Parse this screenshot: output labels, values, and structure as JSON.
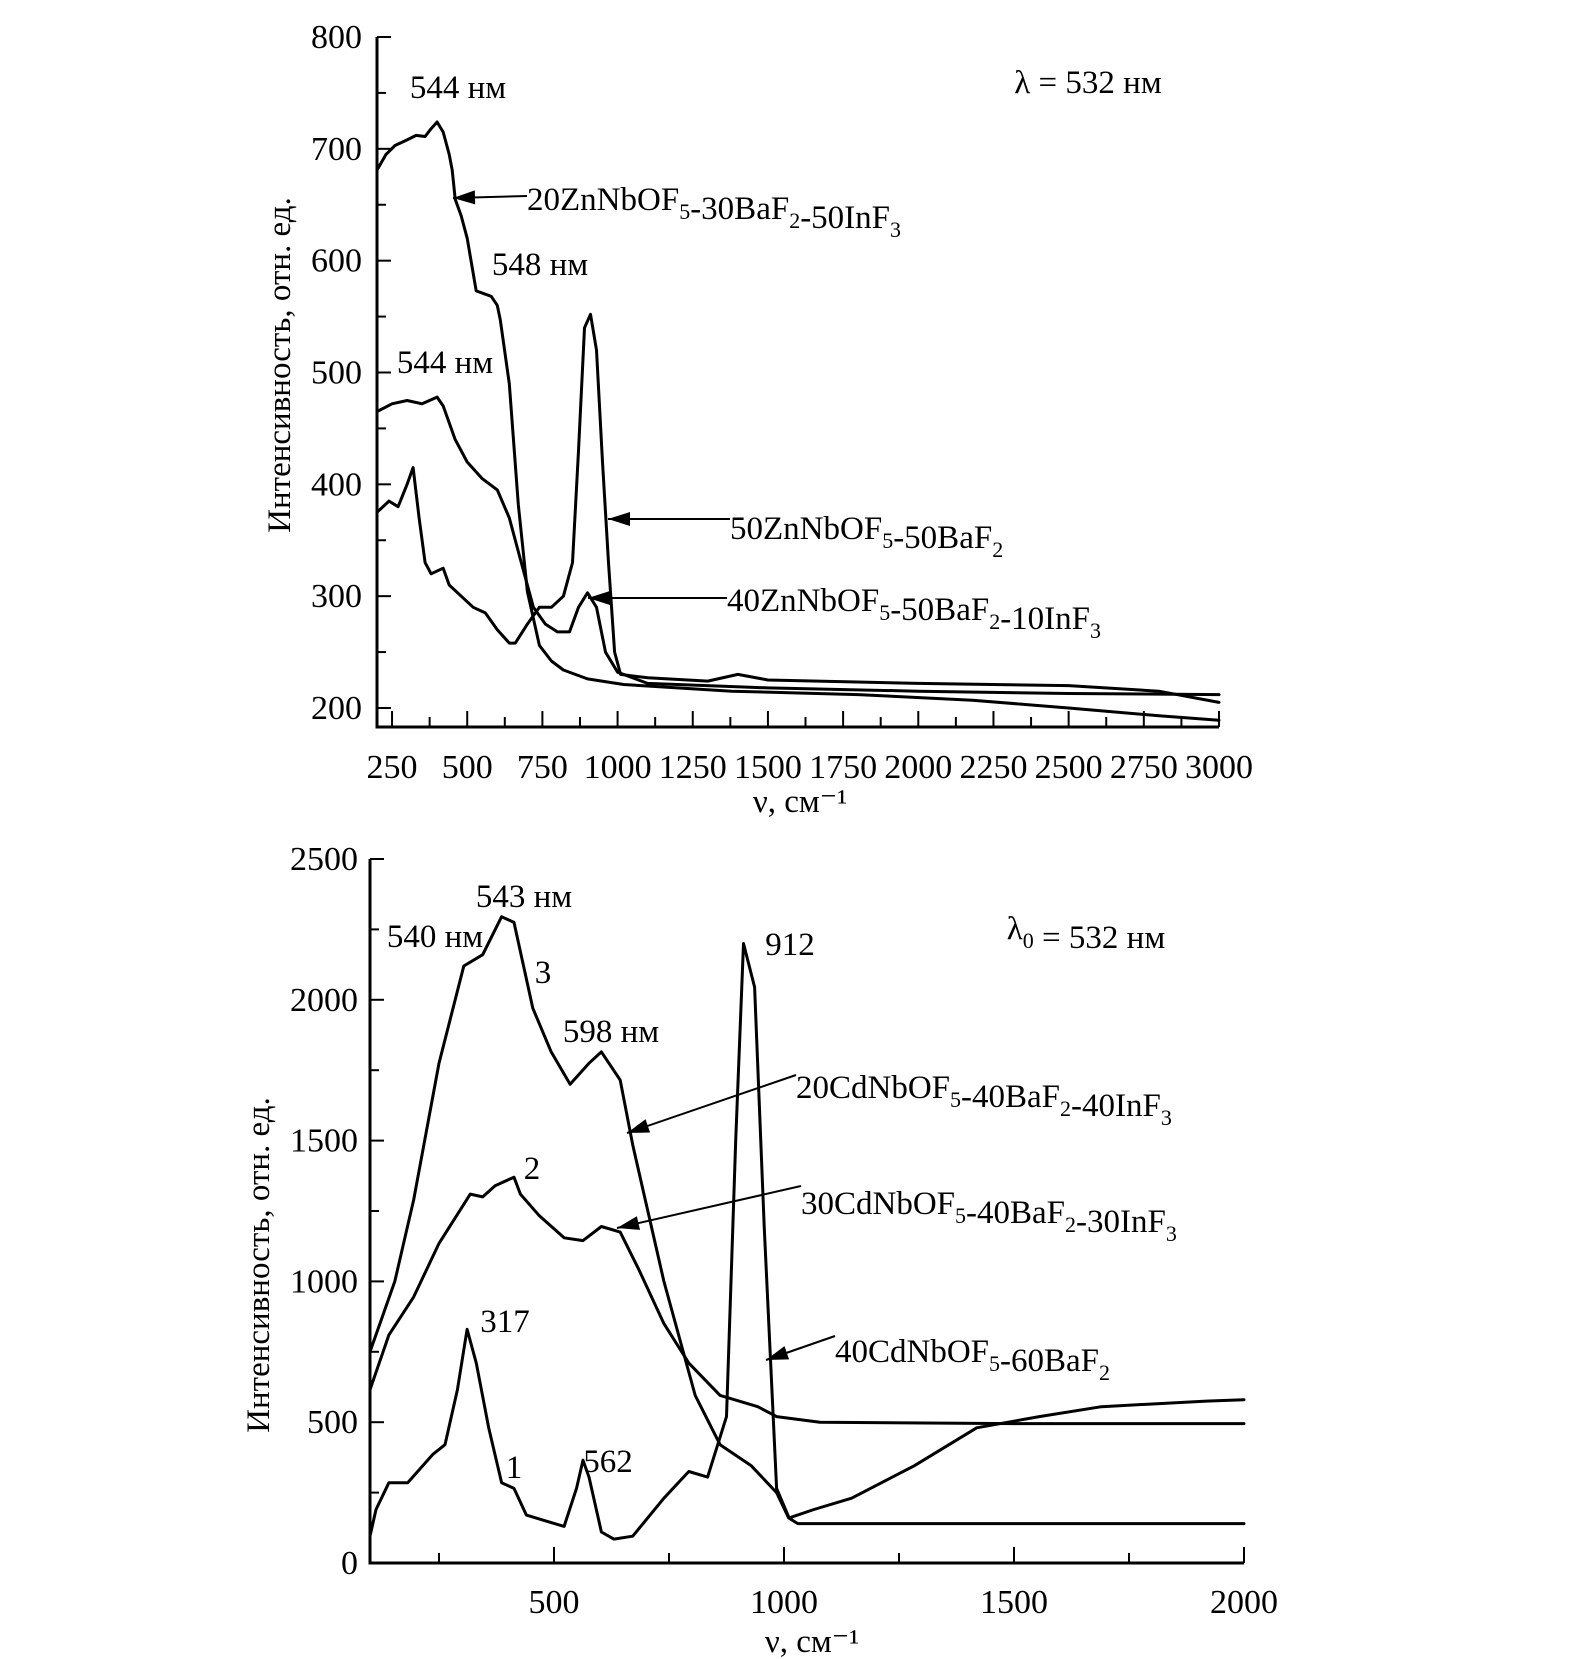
{
  "chart_data": [
    {
      "type": "line",
      "title": "",
      "xlabel": "ν, см⁻¹",
      "ylabel": "Интенсивность, отн. ед.",
      "xlim": [
        200,
        3000
      ],
      "ylim": [
        183,
        800
      ],
      "xticks": [
        250,
        500,
        750,
        1000,
        1250,
        1500,
        1750,
        2000,
        2250,
        2500,
        2750,
        3000
      ],
      "yticks": [
        200,
        300,
        400,
        500,
        600,
        700,
        800
      ],
      "grid": false,
      "excitation_label": "λ = 532 нм",
      "peak_labels": [
        "544 нм",
        "548 нм",
        "544 нм"
      ],
      "series": [
        {
          "name": "20ZnNbOF_5-30BaF_2-50InF_3",
          "points": [
            [
              200,
              681
            ],
            [
              230,
              695
            ],
            [
              260,
              703
            ],
            [
              300,
              708
            ],
            [
              330,
              712
            ],
            [
              360,
              711
            ],
            [
              380,
              718
            ],
            [
              400,
              724
            ],
            [
              420,
              715
            ],
            [
              440,
              695
            ],
            [
              450,
              681
            ],
            [
              460,
              655
            ],
            [
              480,
              640
            ],
            [
              500,
              620
            ],
            [
              530,
              573
            ],
            [
              560,
              570
            ],
            [
              580,
              568
            ],
            [
              600,
              560
            ],
            [
              610,
              547
            ],
            [
              640,
              490
            ],
            [
              670,
              382
            ],
            [
              700,
              304
            ],
            [
              740,
              256
            ],
            [
              780,
              242
            ],
            [
              820,
              234
            ],
            [
              900,
              226
            ],
            [
              1020,
              221
            ],
            [
              1380,
              215
            ],
            [
              1800,
              212
            ],
            [
              2180,
              207
            ],
            [
              2500,
              200
            ],
            [
              2800,
              193
            ],
            [
              3000,
              189
            ]
          ]
        },
        {
          "name": "50ZnNbOF_5-50BaF_2",
          "points": [
            [
              200,
              375
            ],
            [
              240,
              385
            ],
            [
              270,
              380
            ],
            [
              300,
              400
            ],
            [
              320,
              415
            ],
            [
              340,
              370
            ],
            [
              360,
              330
            ],
            [
              380,
              320
            ],
            [
              420,
              325
            ],
            [
              440,
              310
            ],
            [
              480,
              300
            ],
            [
              520,
              290
            ],
            [
              560,
              285
            ],
            [
              600,
              270
            ],
            [
              640,
              258
            ],
            [
              660,
              258
            ],
            [
              700,
              275
            ],
            [
              740,
              290
            ],
            [
              780,
              290
            ],
            [
              820,
              300
            ],
            [
              850,
              330
            ],
            [
              870,
              430
            ],
            [
              890,
              540
            ],
            [
              910,
              552
            ],
            [
              930,
              520
            ],
            [
              950,
              420
            ],
            [
              970,
              330
            ],
            [
              990,
              250
            ],
            [
              1010,
              230
            ],
            [
              1100,
              227
            ],
            [
              1300,
              224
            ],
            [
              1400,
              230
            ],
            [
              1500,
              225
            ],
            [
              2000,
              222
            ],
            [
              2500,
              220
            ],
            [
              2800,
              215
            ],
            [
              3000,
              205
            ]
          ]
        },
        {
          "name": "40ZnNbOF_5-50BaF_2-10InF_3",
          "points": [
            [
              200,
              465
            ],
            [
              250,
              472
            ],
            [
              300,
              475
            ],
            [
              350,
              472
            ],
            [
              400,
              478
            ],
            [
              420,
              470
            ],
            [
              460,
              440
            ],
            [
              500,
              420
            ],
            [
              550,
              405
            ],
            [
              600,
              395
            ],
            [
              640,
              370
            ],
            [
              680,
              330
            ],
            [
              720,
              290
            ],
            [
              760,
              275
            ],
            [
              800,
              268
            ],
            [
              840,
              268
            ],
            [
              870,
              290
            ],
            [
              900,
              303
            ],
            [
              930,
              290
            ],
            [
              960,
              250
            ],
            [
              1000,
              232
            ],
            [
              1100,
              222
            ],
            [
              1500,
              218
            ],
            [
              2000,
              215
            ],
            [
              2500,
              213
            ],
            [
              3000,
              212
            ]
          ]
        }
      ]
    },
    {
      "type": "line",
      "title": "",
      "xlabel": "ν, см⁻¹",
      "ylabel": "Интенсивность, отн. ед.",
      "xlim": [
        100,
        2000
      ],
      "ylim": [
        0,
        2500
      ],
      "xticks": [
        500,
        1000,
        1500,
        2000
      ],
      "yticks": [
        0,
        500,
        1000,
        1500,
        2000,
        2500
      ],
      "grid": false,
      "excitation_label": "λ_0 = 532 нм",
      "peak_labels": [
        "543 нм",
        "540 нм",
        "598 нм",
        "912",
        "317",
        "562"
      ],
      "curve_numbers": [
        "1",
        "2",
        "3"
      ],
      "series": [
        {
          "name": "20CdNbOF_5-40BaF_2-40InF_3",
          "number": "3",
          "points": [
            [
              100,
              750
            ],
            [
              154,
              1000
            ],
            [
              195,
              1290
            ],
            [
              250,
              1775
            ],
            [
              304,
              2120
            ],
            [
              345,
              2160
            ],
            [
              386,
              2295
            ],
            [
              413,
              2275
            ],
            [
              454,
              1970
            ],
            [
              494,
              1815
            ],
            [
              535,
              1700
            ],
            [
              576,
              1775
            ],
            [
              603,
              1815
            ],
            [
              644,
              1715
            ],
            [
              671,
              1485
            ],
            [
              739,
              1000
            ],
            [
              807,
              595
            ],
            [
              861,
              420
            ],
            [
              929,
              345
            ],
            [
              984,
              250
            ],
            [
              1010,
              160
            ],
            [
              1030,
              140
            ],
            [
              1500,
              140
            ],
            [
              2000,
              140
            ]
          ]
        },
        {
          "name": "30CdNbOF_5-40BaF_2-30InF_3",
          "number": "2",
          "points": [
            [
              100,
              615
            ],
            [
              141,
              810
            ],
            [
              195,
              945
            ],
            [
              250,
              1135
            ],
            [
              318,
              1310
            ],
            [
              345,
              1300
            ],
            [
              372,
              1340
            ],
            [
              413,
              1370
            ],
            [
              427,
              1310
            ],
            [
              467,
              1235
            ],
            [
              522,
              1155
            ],
            [
              563,
              1145
            ],
            [
              603,
              1195
            ],
            [
              644,
              1175
            ],
            [
              685,
              1040
            ],
            [
              739,
              850
            ],
            [
              793,
              710
            ],
            [
              861,
              595
            ],
            [
              943,
              555
            ],
            [
              984,
              520
            ],
            [
              1078,
              500
            ],
            [
              1500,
              495
            ],
            [
              2000,
              495
            ]
          ]
        },
        {
          "name": "40CdNbOF_5-60BaF_2",
          "number": "1",
          "points": [
            [
              100,
              95
            ],
            [
              113,
              190
            ],
            [
              141,
              285
            ],
            [
              182,
              285
            ],
            [
              236,
              385
            ],
            [
              263,
              420
            ],
            [
              290,
              615
            ],
            [
              311,
              830
            ],
            [
              331,
              710
            ],
            [
              358,
              480
            ],
            [
              386,
              285
            ],
            [
              413,
              265
            ],
            [
              440,
              170
            ],
            [
              481,
              150
            ],
            [
              522,
              130
            ],
            [
              549,
              265
            ],
            [
              563,
              365
            ],
            [
              576,
              305
            ],
            [
              603,
              110
            ],
            [
              630,
              85
            ],
            [
              671,
              95
            ],
            [
              739,
              230
            ],
            [
              793,
              325
            ],
            [
              834,
              305
            ],
            [
              875,
              520
            ],
            [
              895,
              1500
            ],
            [
              912,
              2200
            ],
            [
              936,
              2045
            ],
            [
              957,
              1195
            ],
            [
              984,
              265
            ],
            [
              1011,
              160
            ],
            [
              1065,
              190
            ],
            [
              1147,
              230
            ],
            [
              1283,
              345
            ],
            [
              1419,
              480
            ],
            [
              1555,
              520
            ],
            [
              1690,
              555
            ],
            [
              1918,
              575
            ],
            [
              2000,
              580
            ]
          ]
        }
      ]
    }
  ]
}
